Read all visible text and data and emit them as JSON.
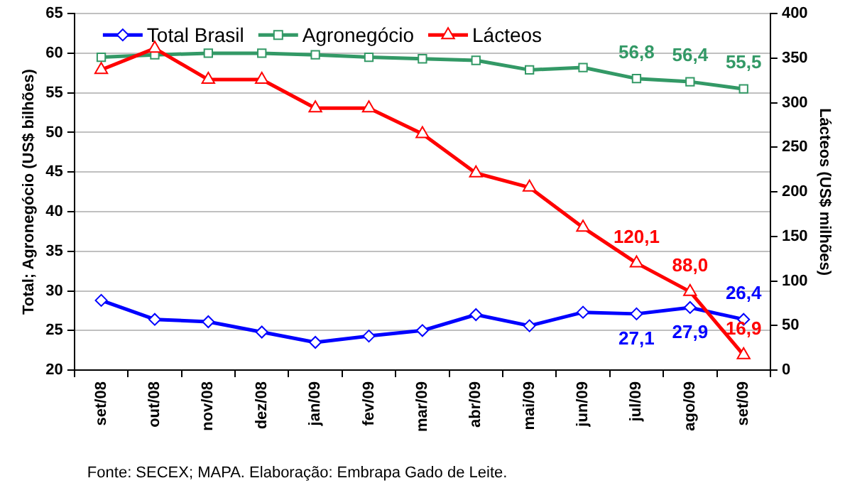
{
  "chart_data": {
    "type": "line",
    "categories": [
      "set/08",
      "out/08",
      "nov/08",
      "dez/08",
      "jan/09",
      "fev/09",
      "mar/09",
      "abr/09",
      "mai/09",
      "jun/09",
      "jul/09",
      "ago/09",
      "set/09"
    ],
    "series": [
      {
        "name": "Total Brasil",
        "color": "#0000ff",
        "marker": "diamond",
        "values": [
          28.8,
          26.4,
          26.1,
          24.8,
          23.5,
          24.3,
          25.0,
          27.0,
          25.6,
          27.3,
          27.1,
          27.9,
          26.4
        ],
        "value_labels": [
          null,
          null,
          null,
          null,
          null,
          null,
          null,
          null,
          null,
          null,
          "27,1",
          "27,9",
          "26,4"
        ]
      },
      {
        "name": "Agronegócio",
        "color": "#339966",
        "marker": "square",
        "values": [
          59.5,
          59.8,
          60.0,
          60.0,
          59.8,
          59.5,
          59.3,
          59.1,
          57.9,
          58.2,
          56.8,
          56.4,
          55.5
        ],
        "value_labels": [
          null,
          null,
          null,
          null,
          null,
          null,
          null,
          null,
          null,
          null,
          "56,8",
          "56,4",
          "55,5"
        ]
      },
      {
        "name": "Lácteos",
        "color": "#ff0000",
        "marker": "triangle",
        "axis": "y2",
        "values": [
          337,
          361,
          326,
          326,
          294,
          294,
          265,
          221,
          205,
          160,
          120.1,
          88.0,
          16.9
        ],
        "value_labels": [
          null,
          null,
          null,
          null,
          null,
          null,
          null,
          null,
          null,
          null,
          "120,1",
          "88,0",
          "16,9"
        ]
      }
    ],
    "ylabel": "Total; Agronegócio (US$ bilhões)",
    "y2label": "Lácteos (US$ milhões)",
    "ylim": [
      20,
      65
    ],
    "yticks": [
      20,
      25,
      30,
      35,
      40,
      45,
      50,
      55,
      60,
      65
    ],
    "y2lim": [
      0,
      400
    ],
    "y2ticks": [
      0,
      50,
      100,
      150,
      200,
      250,
      300,
      350,
      400
    ],
    "grid": "y",
    "legend": "top left",
    "annotations": [
      "Fonte: SECEX; MAPA. Elaboração: Embrapa Gado de Leite."
    ]
  }
}
